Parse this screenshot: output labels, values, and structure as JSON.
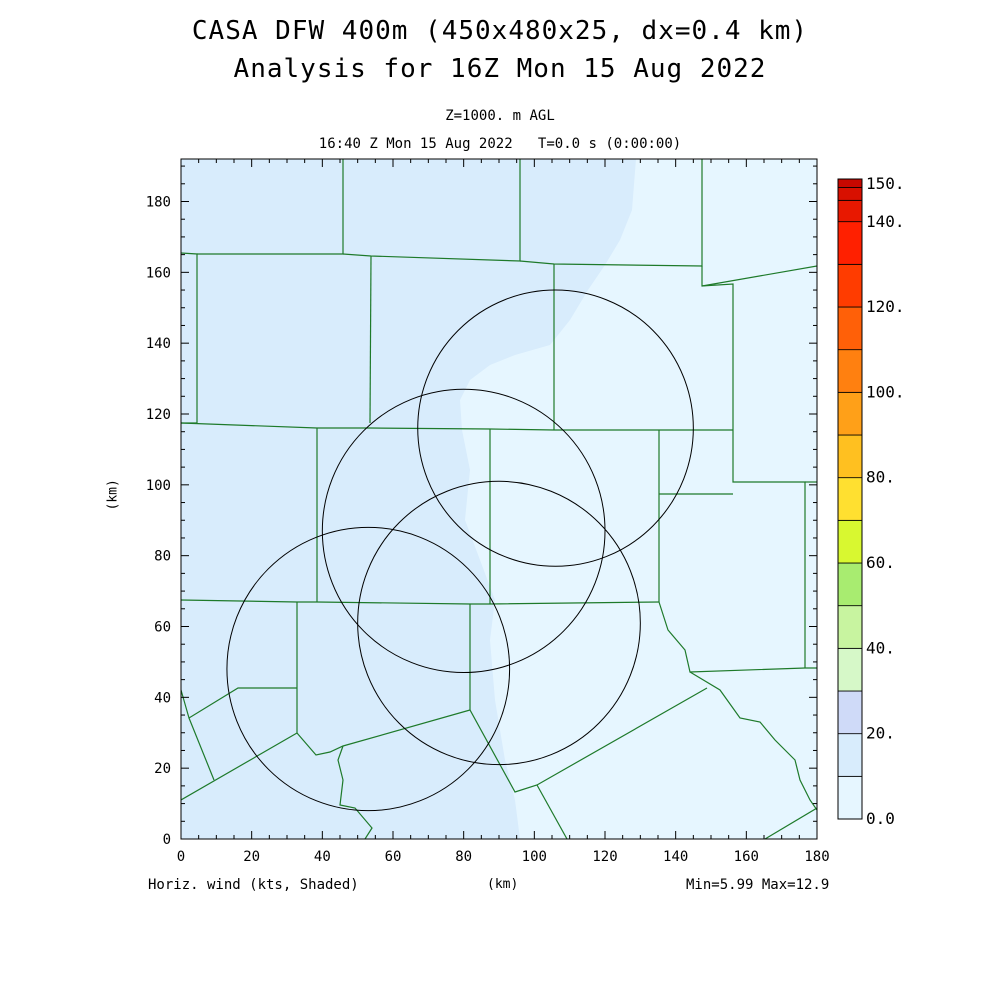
{
  "header": {
    "title_line1": "CASA DFW 400m (450x480x25, dx=0.4 km)",
    "title_line2": "Analysis for 16Z Mon 15 Aug 2022",
    "level": "Z=1000. m AGL",
    "time": "16:40 Z Mon 15 Aug 2022   T=0.0 s (0:00:00)"
  },
  "footer": {
    "variable": "Horiz. wind (kts, Shaded)",
    "x_unit": "(km)",
    "minmax": "Min=5.99 Max=12.9"
  },
  "chart_data": {
    "type": "heatmap",
    "title": "CASA DFW 400m (450x480x25, dx=0.4 km)",
    "xlabel": "(km)",
    "ylabel": "(km)",
    "xlim": [
      0,
      180
    ],
    "ylim": [
      0,
      192
    ],
    "x_ticks": [
      0,
      20,
      40,
      60,
      80,
      100,
      120,
      140,
      160,
      180
    ],
    "y_ticks": [
      0,
      20,
      40,
      60,
      80,
      100,
      120,
      140,
      160,
      180
    ],
    "field": "Horizontal wind speed (kts)",
    "min": 5.99,
    "max": 12.9,
    "colorbar": {
      "labels": [
        "0.0",
        "20.",
        "40.",
        "60.",
        "80.",
        "100.",
        "120.",
        "140.",
        "150."
      ],
      "colors": [
        "#e6f6ff",
        "#d8ecfc",
        "#cfdaf8",
        "#d6f8c8",
        "#c8f4a0",
        "#a8ec70",
        "#d8f830",
        "#ffe030",
        "#ffc020",
        "#ffa018",
        "#ff8010",
        "#ff6008",
        "#ff3c00",
        "#ff2000",
        "#e81800",
        "#d81000",
        "#c80800",
        "#b00000"
      ]
    },
    "radar_circles": [
      {
        "cx": 106,
        "cy": 116,
        "r": 39
      },
      {
        "cx": 80,
        "cy": 87,
        "r": 40
      },
      {
        "cx": 90,
        "cy": 61,
        "r": 40
      },
      {
        "cx": 53,
        "cy": 48,
        "r": 40
      }
    ]
  }
}
